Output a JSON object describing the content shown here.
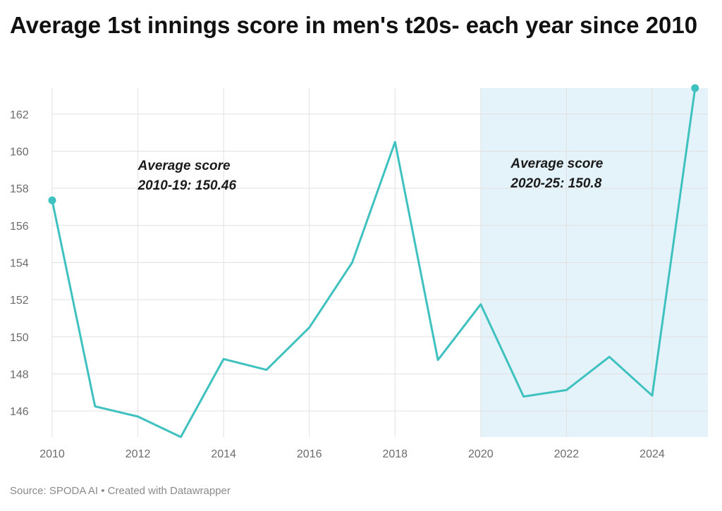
{
  "chart_data": {
    "type": "line",
    "title": "Average 1st innings score in men's t20s- each year since 2010",
    "xlabel": "",
    "ylabel": "",
    "x": [
      2010,
      2011,
      2012,
      2013,
      2014,
      2015,
      2016,
      2017,
      2018,
      2019,
      2020,
      2021,
      2022,
      2023,
      2024,
      2025
    ],
    "series": [
      {
        "values": [
          157.35,
          146.25,
          145.7,
          144.6,
          148.8,
          148.22,
          150.5,
          154.0,
          160.5,
          148.75,
          151.75,
          146.78,
          147.13,
          148.92,
          146.83,
          163.4
        ]
      }
    ],
    "xlim": [
      2010,
      2025.3
    ],
    "ylim": [
      144.6,
      163.4
    ],
    "xticks": [
      "2010",
      "2012",
      "2014",
      "2016",
      "2018",
      "2020",
      "2022",
      "2024"
    ],
    "yticks": [
      "146",
      "148",
      "150",
      "152",
      "154",
      "156",
      "158",
      "160",
      "162"
    ],
    "highlight_range": [
      2020,
      2025.3
    ],
    "grid": true,
    "legend": "none",
    "colors": {
      "line": "#3fc1c0",
      "highlight": "#e4f3f9",
      "grid": "#e1e1e1"
    },
    "annotations": [
      {
        "x": 2012,
        "y": 159,
        "lines": [
          "Average score",
          "2010-19: 150.46"
        ]
      },
      {
        "x": 2020.7,
        "y": 159.1,
        "lines": [
          "Average score",
          "2020-25: 150.8"
        ]
      }
    ]
  },
  "source": "Source: SPODA AI • Created with Datawrapper"
}
